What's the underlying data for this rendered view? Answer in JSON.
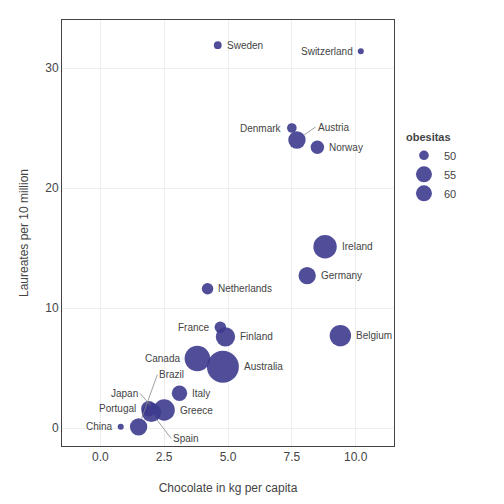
{
  "chart_data": {
    "type": "scatter",
    "x_label": "Chocolate in kg per capita",
    "y_label": "Laureates per 10 million",
    "point_labels": [
      "Sweden",
      "Switzerland",
      "Denmark",
      "Austria",
      "Norway",
      "Ireland",
      "Germany",
      "Netherlands",
      "France",
      "Finland",
      "Belgium",
      "Canada",
      "Australia",
      "Italy",
      "Portugal",
      "Japan",
      "Spain",
      "Greece",
      "China",
      "Brazil"
    ],
    "x": [
      4.6,
      10.2,
      7.5,
      7.7,
      8.5,
      8.8,
      8.1,
      4.2,
      4.7,
      4.9,
      9.4,
      3.8,
      4.8,
      3.1,
      1.9,
      2.0,
      2.0,
      2.5,
      0.8,
      1.5
    ],
    "values": [
      31.9,
      31.4,
      25.0,
      24.0,
      23.4,
      15.1,
      12.7,
      11.6,
      8.4,
      7.6,
      7.7,
      5.8,
      5.1,
      2.9,
      1.6,
      1.8,
      1.3,
      1.5,
      0.1,
      0.1
    ],
    "obesitas": [
      49,
      48,
      50,
      54,
      52,
      57,
      54,
      51,
      51,
      55,
      56,
      58,
      61,
      53,
      53,
      46,
      55,
      56,
      48,
      54
    ],
    "size_legend_title": "obesitas",
    "size_legend": [
      50,
      55,
      60
    ],
    "color": "#3D3B8E",
    "xlim": [
      -1.5,
      11.5
    ],
    "xticks": [
      {
        "value": 0,
        "label": "0.0"
      },
      2.5,
      {
        "value": 5,
        "label": "5.0"
      },
      7.5,
      {
        "value": 10,
        "label": "10.0"
      }
    ],
    "ylim": [
      -1.5,
      34
    ],
    "yticks": [
      0,
      10,
      20,
      30
    ],
    "grid": true,
    "legend": "right"
  }
}
